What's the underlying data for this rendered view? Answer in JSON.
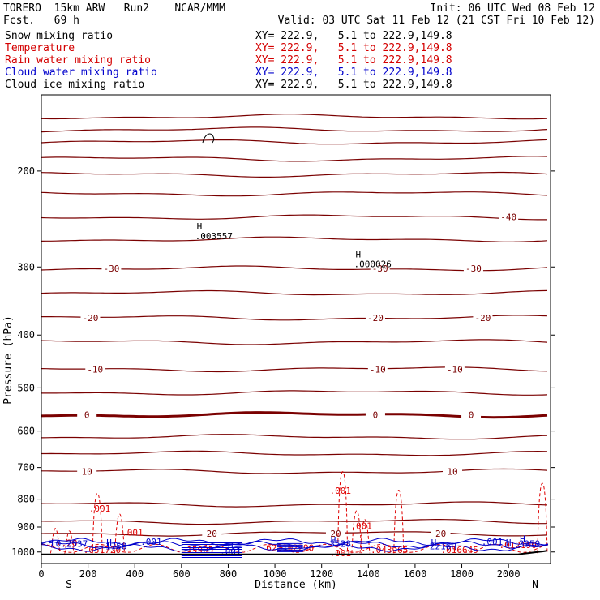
{
  "header": {
    "model": "TORERO  15km ARW   Run2    NCAR/MMM",
    "fcst": "Fcst.   69 h",
    "init": "Init: 06 UTC Wed 08 Feb 12",
    "valid": "Valid: 03 UTC Sat 11 Feb 12 (21 CST Fri 10 Feb 12)",
    "fields": [
      {
        "name": "Snow mixing ratio",
        "range": "XY= 222.9,   5.1 to 222.9,149.8",
        "color": "#000000"
      },
      {
        "name": "Temperature",
        "range": "XY= 222.9,   5.1 to 222.9,149.8",
        "color": "#d40000"
      },
      {
        "name": "Rain water mixing ratio",
        "range": "XY= 222.9,   5.1 to 222.9,149.8",
        "color": "#d40000"
      },
      {
        "name": "Cloud water mixing ratio",
        "range": "XY= 222.9,   5.1 to 222.9,149.8",
        "color": "#0000cc"
      },
      {
        "name": "Cloud ice mixing ratio",
        "range": "XY= 222.9,   5.1 to 222.9,149.8",
        "color": "#000000"
      }
    ]
  },
  "chart_data": {
    "type": "line",
    "xlabel": "Distance (km)",
    "ylabel": "Pressure (hPa)",
    "xlim": [
      0,
      2180
    ],
    "ylim": [
      145,
      1050
    ],
    "y_scale": "log",
    "y_reversed": true,
    "x_ticks": [
      0,
      200,
      400,
      600,
      800,
      1000,
      1200,
      1400,
      1600,
      1800,
      2000
    ],
    "y_ticks": [
      200,
      300,
      400,
      500,
      600,
      700,
      800,
      900,
      1000
    ],
    "x_end_labels": {
      "left": "S",
      "right": "N"
    },
    "colors": {
      "temperature": "#7a0000",
      "rain": "#e00000",
      "cloud_water": "#0000cc",
      "snow": "#000000",
      "ground": "#000000"
    },
    "temperature_isotherms": [
      {
        "p": 159,
        "label": ""
      },
      {
        "p": 168,
        "label": ""
      },
      {
        "p": 177,
        "label": ""
      },
      {
        "p": 190,
        "label": ""
      },
      {
        "p": 203,
        "label": ""
      },
      {
        "p": 220,
        "label": ""
      },
      {
        "p": 243,
        "label": "-40",
        "label_x": [
          2000
        ]
      },
      {
        "p": 267,
        "label": ""
      },
      {
        "p": 302,
        "label": "-30",
        "label_x": [
          300,
          1450,
          1850
        ]
      },
      {
        "p": 335,
        "label": ""
      },
      {
        "p": 372,
        "label": "-20",
        "label_x": [
          210,
          1430,
          1890
        ]
      },
      {
        "p": 412,
        "label": ""
      },
      {
        "p": 462,
        "label": "-10",
        "label_x": [
          230,
          1440,
          1770
        ]
      },
      {
        "p": 510,
        "label": ""
      },
      {
        "p": 560,
        "label": "0",
        "label_x": [
          195,
          1430,
          1840
        ],
        "bold": true
      },
      {
        "p": 615,
        "label": ""
      },
      {
        "p": 660,
        "label": ""
      },
      {
        "p": 712,
        "label": "10",
        "label_x": [
          195,
          1760
        ]
      },
      {
        "p": 818,
        "label": ""
      },
      {
        "p": 880,
        "label": ""
      },
      {
        "p": 925,
        "label": "20",
        "label_x": [
          730,
          1260,
          1710
        ]
      }
    ],
    "snow_features": [
      {
        "x": 700,
        "p": 263,
        "label": "H",
        "value": ".003557"
      },
      {
        "x": 1380,
        "p": 296,
        "label": "H",
        "value": ".000026"
      }
    ],
    "rain_labels": [
      {
        "x": 250,
        "p": 832,
        "value": ".001"
      },
      {
        "x": 390,
        "p": 920,
        "value": ".001"
      },
      {
        "x": 1280,
        "p": 771,
        "value": ".001"
      },
      {
        "x": 1370,
        "p": 895,
        "value": ".001"
      },
      {
        "x": 1280,
        "p": 1005,
        "value": ".001"
      },
      {
        "x": 260,
        "p": 990,
        "value": ".051720"
      },
      {
        "x": 680,
        "p": 990,
        "value": "15905"
      },
      {
        "x": 1020,
        "p": 982,
        "value": "62310"
      },
      {
        "x": 1110,
        "p": 982,
        "value": "12290"
      },
      {
        "x": 1490,
        "p": 990,
        "value": ".043965"
      },
      {
        "x": 1790,
        "p": 990,
        "value": ".016645"
      },
      {
        "x": 2040,
        "p": 970,
        "value": ".012190"
      },
      {
        "x": 120,
        "p": 963,
        "value": ".20"
      }
    ],
    "cloud_labels": [
      {
        "x": 40,
        "p": 963,
        "value": "H"
      },
      {
        "x": 130,
        "p": 965,
        "value": "0.2537"
      },
      {
        "x": 290,
        "p": 960,
        "value": "H"
      },
      {
        "x": 320,
        "p": 975,
        "value": "1758"
      },
      {
        "x": 470,
        "p": 958,
        "value": ".001"
      },
      {
        "x": 810,
        "p": 970,
        "value": "H"
      },
      {
        "x": 810,
        "p": 998,
        "value": ".001"
      },
      {
        "x": 1250,
        "p": 950,
        "value": "H"
      },
      {
        "x": 1280,
        "p": 965,
        "value": "3528"
      },
      {
        "x": 1680,
        "p": 960,
        "value": "H"
      },
      {
        "x": 1720,
        "p": 975,
        "value": "2216H"
      },
      {
        "x": 1930,
        "p": 958,
        "value": ".001"
      },
      {
        "x": 2060,
        "p": 946,
        "value": "H"
      },
      {
        "x": 2090,
        "p": 965,
        "value": "3959"
      },
      {
        "x": 2000,
        "p": 961,
        "value": "H"
      }
    ]
  }
}
